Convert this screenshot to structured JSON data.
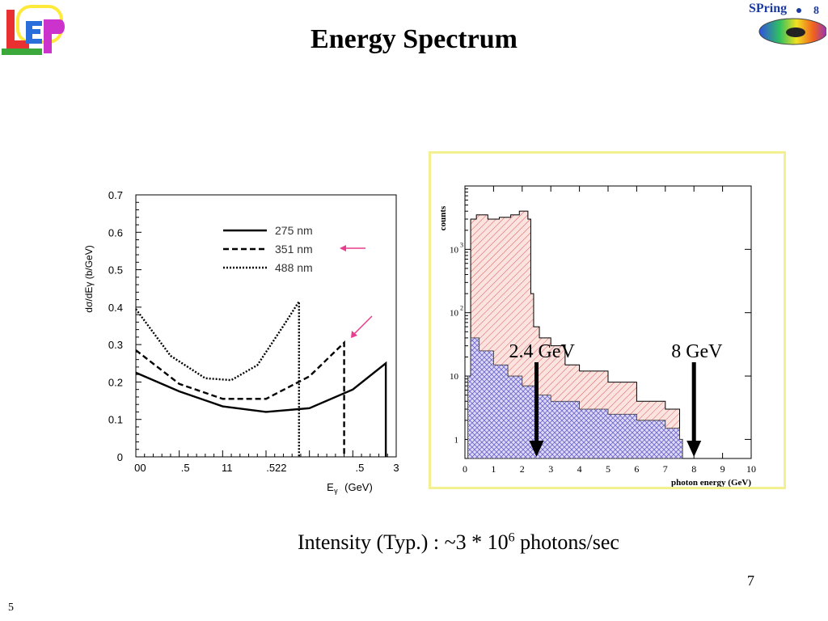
{
  "slide": {
    "title": "Energy Spectrum",
    "slide_number": "7",
    "page_number": "5",
    "intensity": {
      "prefix": "Intensity (Typ.)  : ~3 * 10",
      "exponent": "6",
      "suffix": " photons/sec"
    }
  },
  "logos": {
    "left": {
      "icon": "leps-logo"
    },
    "right": {
      "text": "SPring",
      "suffix": "8",
      "icon": "spring8-logo"
    }
  },
  "colors": {
    "arrow_pink": "#e83c8c",
    "hist_red": "#e25858",
    "hist_blue": "#6666cc",
    "panel_border": "#f2f090"
  },
  "chart_data": [
    {
      "type": "line",
      "title": "",
      "xlabel": "E",
      "xlabel_sub": "γ",
      "xlabel_unit": "(GeV)",
      "ylabel": "dσ/dEγ (b/GeV)",
      "ylim": [
        0,
        0.7
      ],
      "xlim": [
        0,
        3
      ],
      "y_ticks": [
        "0",
        "0.1",
        "0.2",
        "0.3",
        "0.4",
        "0.5",
        "0.6",
        "0.7"
      ],
      "x_tick_labels": [
        "00",
        ".5",
        "11",
        ".522",
        ".5",
        "3"
      ],
      "legend": [
        "275 nm",
        "351 nm",
        "488 nm"
      ],
      "legend_position": "top-right",
      "series": [
        {
          "name": "275 nm",
          "style": "solid",
          "max_x": 2.88,
          "x": [
            0,
            0.5,
            1.0,
            1.5,
            2.0,
            2.5,
            2.88
          ],
          "y": [
            0.225,
            0.175,
            0.135,
            0.12,
            0.13,
            0.18,
            0.25
          ]
        },
        {
          "name": "351 nm",
          "style": "dashed",
          "max_x": 2.4,
          "x": [
            0,
            0.5,
            1.0,
            1.5,
            2.0,
            2.4
          ],
          "y": [
            0.285,
            0.195,
            0.155,
            0.155,
            0.215,
            0.305
          ]
        },
        {
          "name": "488 nm",
          "style": "dotted",
          "max_x": 1.88,
          "x": [
            0,
            0.4,
            0.8,
            1.1,
            1.4,
            1.7,
            1.88
          ],
          "y": [
            0.395,
            0.27,
            0.21,
            0.205,
            0.245,
            0.35,
            0.415
          ]
        }
      ],
      "annotations": [
        {
          "kind": "arrow",
          "target": "351 nm legend"
        },
        {
          "kind": "arrow",
          "target": "351 nm endpoint"
        }
      ]
    },
    {
      "type": "histogram",
      "title": "",
      "xlabel": "photon energy (GeV)",
      "ylabel": "counts",
      "yscale": "log",
      "xlim": [
        0,
        10
      ],
      "ylim": [
        0.5,
        10000
      ],
      "x_ticks": [
        "0",
        "1",
        "2",
        "3",
        "4",
        "5",
        "6",
        "7",
        "8",
        "9",
        "10"
      ],
      "y_ticks": [
        {
          "base": "1",
          "exp": ""
        },
        {
          "base": "10",
          "exp": ""
        },
        {
          "base": "10",
          "exp": "2"
        },
        {
          "base": "10",
          "exp": "3"
        }
      ],
      "series": [
        {
          "name": "",
          "fill": "red-hatched",
          "x": [
            0.2,
            0.4,
            0.8,
            1.2,
            1.6,
            1.9,
            2.2,
            2.3,
            2.4,
            2.6,
            3.0,
            3.5,
            4.0,
            5.0,
            6.0,
            7.0,
            7.5
          ],
          "y": [
            3000,
            3500,
            3000,
            3200,
            3500,
            4000,
            3000,
            200,
            60,
            40,
            30,
            15,
            12,
            8,
            4,
            3,
            1
          ]
        },
        {
          "name": "",
          "fill": "blue-crosshatched",
          "x": [
            0.1,
            0.2,
            0.5,
            1.0,
            1.5,
            2.0,
            2.5,
            3.0,
            4.0,
            5.0,
            6.0,
            7.0,
            7.5
          ],
          "y": [
            10,
            40,
            25,
            15,
            10,
            7,
            5,
            4,
            3,
            2.5,
            2,
            1.5,
            1
          ]
        }
      ],
      "annotations": [
        {
          "text": "2.4 GeV",
          "x": 2.5
        },
        {
          "text": "8 GeV",
          "x": 8.0
        }
      ]
    }
  ]
}
